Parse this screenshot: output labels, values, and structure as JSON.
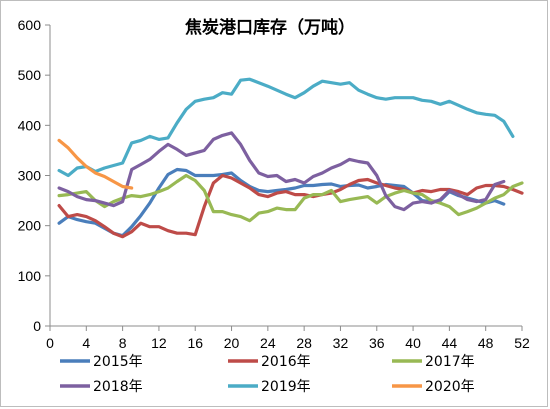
{
  "chart_data": {
    "type": "line",
    "title": "焦炭港口库存（万吨）",
    "xlabel": "",
    "ylabel": "",
    "xlim": [
      0,
      52
    ],
    "ylim": [
      0,
      600
    ],
    "xticks": [
      0,
      4,
      8,
      12,
      16,
      20,
      24,
      28,
      32,
      36,
      40,
      44,
      48,
      52
    ],
    "yticks": [
      0,
      100,
      200,
      300,
      400,
      500,
      600
    ],
    "grid": false,
    "legend_position": "bottom",
    "series": [
      {
        "name": "2015年",
        "color": "#4a7ebb",
        "x": [
          1,
          2,
          3,
          4,
          5,
          6,
          7,
          8,
          9,
          10,
          11,
          12,
          13,
          14,
          15,
          16,
          17,
          18,
          19,
          20,
          21,
          22,
          23,
          24,
          25,
          26,
          27,
          28,
          29,
          30,
          31,
          32,
          33,
          34,
          35,
          36,
          37,
          38,
          39,
          40,
          41,
          42,
          43,
          44,
          45,
          46,
          47,
          48,
          49,
          50
        ],
        "y": [
          205,
          218,
          212,
          208,
          205,
          195,
          185,
          180,
          198,
          220,
          245,
          275,
          302,
          312,
          310,
          300,
          300,
          300,
          302,
          305,
          290,
          278,
          270,
          268,
          270,
          272,
          275,
          280,
          280,
          282,
          283,
          278,
          280,
          281,
          275,
          278,
          282,
          280,
          278,
          265,
          250,
          248,
          250,
          268,
          260,
          255,
          250,
          245,
          250,
          243
        ]
      },
      {
        "name": "2016年",
        "color": "#be4b48",
        "x": [
          1,
          2,
          3,
          4,
          5,
          6,
          7,
          8,
          9,
          10,
          11,
          12,
          13,
          14,
          15,
          16,
          17,
          18,
          19,
          20,
          21,
          22,
          23,
          24,
          25,
          26,
          27,
          28,
          29,
          30,
          31,
          32,
          33,
          34,
          35,
          36,
          37,
          38,
          39,
          40,
          41,
          42,
          43,
          44,
          45,
          46,
          47,
          48,
          49,
          50,
          51,
          52
        ],
        "y": [
          240,
          218,
          222,
          218,
          210,
          198,
          185,
          178,
          188,
          205,
          198,
          198,
          190,
          185,
          185,
          182,
          238,
          285,
          300,
          295,
          285,
          275,
          262,
          258,
          265,
          268,
          262,
          262,
          258,
          262,
          265,
          272,
          282,
          290,
          292,
          285,
          280,
          275,
          272,
          265,
          270,
          268,
          272,
          272,
          268,
          262,
          275,
          280,
          280,
          278,
          272,
          265
        ]
      },
      {
        "name": "2017年",
        "color": "#98b954",
        "x": [
          1,
          2,
          3,
          4,
          5,
          6,
          7,
          8,
          9,
          10,
          11,
          12,
          13,
          14,
          15,
          16,
          17,
          18,
          19,
          20,
          21,
          22,
          23,
          24,
          25,
          26,
          27,
          28,
          29,
          30,
          31,
          32,
          33,
          34,
          35,
          36,
          37,
          38,
          39,
          40,
          41,
          42,
          43,
          44,
          45,
          46,
          47,
          48,
          49,
          50,
          51,
          52
        ],
        "y": [
          260,
          262,
          265,
          268,
          250,
          238,
          248,
          255,
          260,
          258,
          262,
          268,
          275,
          288,
          300,
          290,
          270,
          228,
          228,
          222,
          218,
          210,
          225,
          228,
          235,
          232,
          232,
          255,
          262,
          262,
          270,
          248,
          252,
          255,
          258,
          245,
          258,
          265,
          270,
          265,
          262,
          250,
          245,
          238,
          222,
          228,
          235,
          245,
          255,
          262,
          278,
          285
        ]
      },
      {
        "name": "2018年",
        "color": "#7d60a0",
        "x": [
          1,
          2,
          3,
          4,
          5,
          6,
          7,
          8,
          9,
          10,
          11,
          12,
          13,
          14,
          15,
          16,
          17,
          18,
          19,
          20,
          21,
          22,
          23,
          24,
          25,
          26,
          27,
          28,
          29,
          30,
          31,
          32,
          33,
          34,
          35,
          36,
          37,
          38,
          39,
          40,
          41,
          42,
          43,
          44,
          45,
          46,
          47,
          48,
          49,
          50
        ],
        "y": [
          275,
          268,
          258,
          252,
          250,
          245,
          240,
          248,
          312,
          322,
          332,
          348,
          362,
          352,
          340,
          345,
          350,
          372,
          380,
          385,
          362,
          330,
          305,
          298,
          300,
          288,
          292,
          285,
          298,
          305,
          315,
          322,
          332,
          328,
          325,
          300,
          260,
          238,
          232,
          245,
          248,
          245,
          252,
          270,
          262,
          252,
          248,
          252,
          282,
          288
        ]
      },
      {
        "name": "2019年",
        "color": "#4bacc6",
        "x": [
          1,
          2,
          3,
          4,
          5,
          6,
          7,
          8,
          9,
          10,
          11,
          12,
          13,
          14,
          15,
          16,
          17,
          18,
          19,
          20,
          21,
          22,
          23,
          24,
          25,
          26,
          27,
          28,
          29,
          30,
          31,
          32,
          33,
          34,
          35,
          36,
          37,
          38,
          39,
          40,
          41,
          42,
          43,
          44,
          45,
          46,
          47,
          48,
          49,
          50,
          51
        ],
        "y": [
          310,
          300,
          315,
          318,
          308,
          315,
          320,
          325,
          365,
          370,
          378,
          372,
          375,
          405,
          432,
          448,
          452,
          455,
          465,
          462,
          490,
          492,
          485,
          478,
          470,
          462,
          455,
          465,
          478,
          488,
          485,
          482,
          485,
          470,
          462,
          455,
          452,
          455,
          455,
          455,
          450,
          448,
          442,
          448,
          440,
          432,
          425,
          422,
          420,
          408,
          378
        ]
      },
      {
        "name": "2020年",
        "color": "#f79646",
        "x": [
          1,
          2,
          3,
          4,
          5,
          6,
          7,
          8,
          9
        ],
        "y": [
          370,
          355,
          335,
          318,
          305,
          298,
          288,
          278,
          275
        ]
      }
    ]
  }
}
